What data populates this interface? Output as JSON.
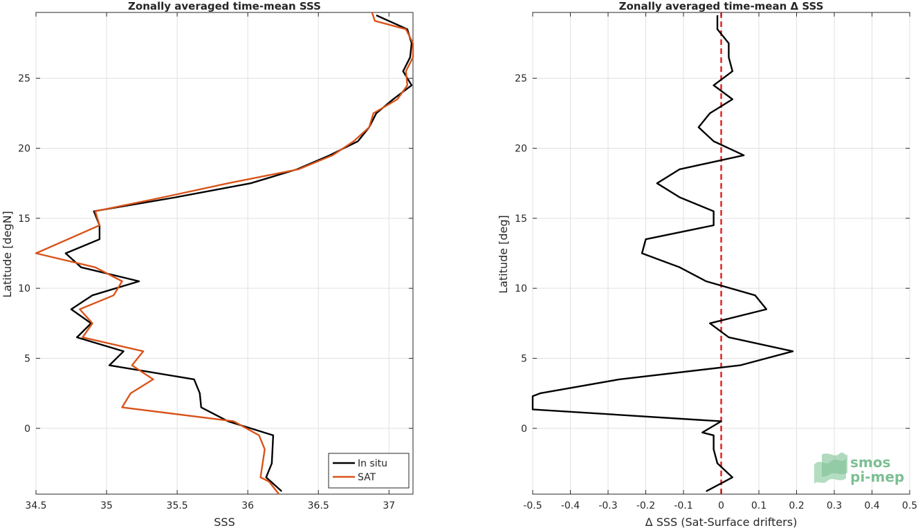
{
  "chart_data": [
    {
      "type": "line",
      "title": "Zonally averaged time-mean SSS",
      "xlabel": "SSS",
      "ylabel": "Latitude [degN]",
      "xlim": [
        34.5,
        37.17
      ],
      "ylim": [
        -4.7,
        29.7
      ],
      "xticks": [
        34.5,
        35,
        35.5,
        36,
        36.5,
        37
      ],
      "xtick_labels": [
        "34.5",
        "35",
        "35.5",
        "36",
        "36.5",
        "37"
      ],
      "yticks": [
        0,
        5,
        10,
        15,
        20,
        25
      ],
      "ytick_labels": [
        "0",
        "5",
        "10",
        "15",
        "20",
        "25"
      ],
      "grid": true,
      "legend": "bottom-right",
      "series": [
        {
          "name": "In situ",
          "color": "#000000",
          "points": [
            [
              36.24,
              -4.5
            ],
            [
              36.13,
              -3.5
            ],
            [
              36.17,
              -2.5
            ],
            [
              36.18,
              -0.5
            ],
            [
              35.86,
              0.5
            ],
            [
              35.67,
              1.5
            ],
            [
              35.66,
              2.5
            ],
            [
              35.62,
              3.5
            ],
            [
              35.02,
              4.5
            ],
            [
              35.12,
              5.5
            ],
            [
              34.79,
              6.5
            ],
            [
              34.89,
              7.5
            ],
            [
              34.75,
              8.5
            ],
            [
              34.9,
              9.5
            ],
            [
              35.23,
              10.5
            ],
            [
              34.82,
              11.5
            ],
            [
              34.71,
              12.5
            ],
            [
              34.95,
              13.5
            ],
            [
              34.95,
              14.5
            ],
            [
              34.91,
              15.5
            ],
            [
              35.49,
              16.5
            ],
            [
              36.02,
              17.5
            ],
            [
              36.35,
              18.5
            ],
            [
              36.58,
              19.5
            ],
            [
              36.78,
              20.5
            ],
            [
              36.86,
              21.5
            ],
            [
              36.91,
              22.5
            ],
            [
              37.03,
              23.5
            ],
            [
              37.16,
              24.5
            ],
            [
              37.1,
              25.5
            ],
            [
              37.15,
              26.5
            ],
            [
              37.16,
              27.5
            ],
            [
              37.13,
              28.5
            ],
            [
              36.91,
              29.5
            ]
          ]
        },
        {
          "name": "SAT",
          "color": "#d95319",
          "points": [
            [
              36.22,
              -4.7
            ],
            [
              36.15,
              -3.8
            ],
            [
              36.09,
              -3.5
            ],
            [
              36.12,
              -1.5
            ],
            [
              36.08,
              -0.5
            ],
            [
              35.9,
              0.5
            ],
            [
              35.11,
              1.5
            ],
            [
              35.17,
              2.5
            ],
            [
              35.33,
              3.5
            ],
            [
              35.18,
              4.5
            ],
            [
              35.26,
              5.5
            ],
            [
              34.83,
              6.5
            ],
            [
              34.9,
              7.5
            ],
            [
              34.81,
              8.5
            ],
            [
              35.05,
              9.5
            ],
            [
              35.11,
              10.5
            ],
            [
              34.92,
              11.5
            ],
            [
              34.5,
              12.5
            ],
            [
              34.95,
              14.5
            ],
            [
              34.92,
              15.5
            ],
            [
              35.4,
              16.5
            ],
            [
              35.86,
              17.5
            ],
            [
              36.36,
              18.5
            ],
            [
              36.6,
              19.5
            ],
            [
              36.75,
              20.5
            ],
            [
              36.86,
              21.5
            ],
            [
              36.89,
              22.5
            ],
            [
              37.06,
              23.5
            ],
            [
              37.13,
              24.5
            ],
            [
              37.12,
              25.5
            ],
            [
              37.17,
              26.5
            ],
            [
              37.17,
              27.5
            ],
            [
              37.12,
              28.5
            ],
            [
              36.9,
              29.1
            ],
            [
              36.88,
              29.8
            ]
          ]
        }
      ]
    },
    {
      "type": "line",
      "title": "Zonally averaged time-mean Δ SSS",
      "xlabel": "Δ SSS (Sat-Surface drifters)",
      "ylabel": "Latitude [deg]",
      "xlim": [
        -0.5,
        0.5
      ],
      "ylim": [
        -4.7,
        29.7
      ],
      "xticks": [
        -0.5,
        -0.4,
        -0.3,
        -0.2,
        -0.1,
        0,
        0.1,
        0.2,
        0.3,
        0.4,
        0.5
      ],
      "xtick_labels": [
        "-0.5",
        "-0.4",
        "-0.3",
        "-0.2",
        "-0.1",
        "0",
        "0.1",
        "0.2",
        "0.3",
        "0.4",
        "0.5"
      ],
      "yticks": [
        0,
        5,
        10,
        15,
        20,
        25
      ],
      "ytick_labels": [
        "0",
        "5",
        "10",
        "15",
        "20",
        "25"
      ],
      "grid": true,
      "reference_line": {
        "x": 0,
        "color": "#e31a1c",
        "style": "dashed"
      },
      "series": [
        {
          "color": "#000000",
          "points": [
            [
              -0.04,
              -4.5
            ],
            [
              0.03,
              -3.5
            ],
            [
              -0.01,
              -2.5
            ],
            [
              -0.02,
              -1.5
            ],
            [
              -0.02,
              -0.5
            ],
            [
              -0.05,
              -0.3
            ],
            [
              0.0,
              0.5
            ],
            [
              -0.5,
              1.35
            ],
            [
              -0.5,
              1.35
            ],
            [
              -0.5,
              2.3
            ],
            [
              -0.48,
              2.5
            ],
            [
              -0.27,
              3.5
            ],
            [
              0.05,
              4.5
            ],
            [
              0.19,
              5.5
            ],
            [
              0.02,
              6.5
            ],
            [
              -0.03,
              7.5
            ],
            [
              0.12,
              8.5
            ],
            [
              0.09,
              9.5
            ],
            [
              -0.04,
              10.5
            ],
            [
              -0.11,
              11.5
            ],
            [
              -0.21,
              12.5
            ],
            [
              -0.2,
              13.5
            ],
            [
              -0.02,
              14.5
            ],
            [
              -0.02,
              15.5
            ],
            [
              -0.11,
              16.5
            ],
            [
              -0.17,
              17.5
            ],
            [
              -0.11,
              18.5
            ],
            [
              0.06,
              19.5
            ],
            [
              -0.02,
              20.5
            ],
            [
              -0.06,
              21.5
            ],
            [
              -0.03,
              22.5
            ],
            [
              0.03,
              23.5
            ],
            [
              -0.02,
              24.5
            ],
            [
              0.03,
              25.5
            ],
            [
              0.02,
              26.5
            ],
            [
              0.02,
              27.5
            ],
            [
              -0.01,
              28.5
            ],
            [
              -0.01,
              29.5
            ]
          ]
        }
      ]
    }
  ],
  "logo": {
    "line1": "smos",
    "line2": "pi-mep"
  }
}
